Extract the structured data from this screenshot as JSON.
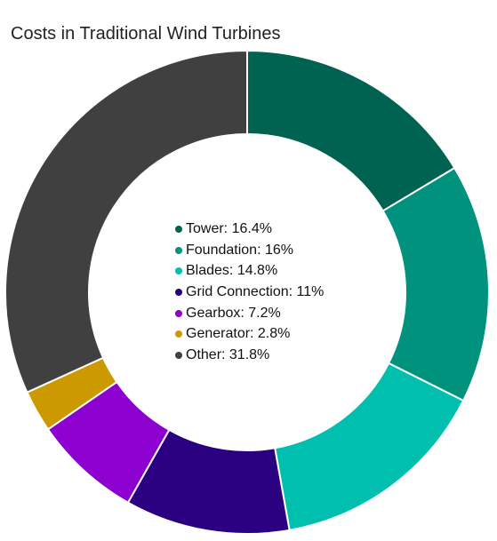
{
  "title": "Costs in Traditional Wind Turbines",
  "chart_data": {
    "type": "pie",
    "variant": "donut",
    "title": "Costs in Traditional Wind Turbines",
    "unit": "%",
    "legend_position": "center",
    "slices": [
      {
        "label": "Tower",
        "value": 16.4,
        "color": "#006352"
      },
      {
        "label": "Foundation",
        "value": 16,
        "color": "#00927d"
      },
      {
        "label": "Blades",
        "value": 14.8,
        "color": "#00bfae"
      },
      {
        "label": "Grid Connection",
        "value": 11,
        "color": "#2a0080"
      },
      {
        "label": "Gearbox",
        "value": 7.2,
        "color": "#8c00d0"
      },
      {
        "label": "Generator",
        "value": 2.8,
        "color": "#cc9a00"
      },
      {
        "label": "Other",
        "value": 31.8,
        "color": "#404040"
      }
    ]
  }
}
